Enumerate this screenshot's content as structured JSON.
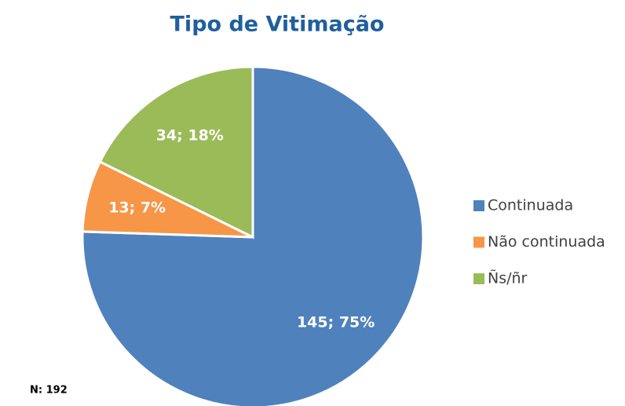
{
  "chart_data": {
    "type": "pie",
    "title": "Tipo de Vitimação",
    "categories": [
      "Continuada",
      "Não continuada",
      "Ñs/ñr"
    ],
    "values": [
      145,
      13,
      34
    ],
    "value_labels": [
      "145; 75%",
      "13; 7%",
      "34; 18%"
    ],
    "colors": [
      "#4f81bd",
      "#f79646",
      "#9bbb59"
    ],
    "legend": "right",
    "annotation": "N: 192"
  }
}
